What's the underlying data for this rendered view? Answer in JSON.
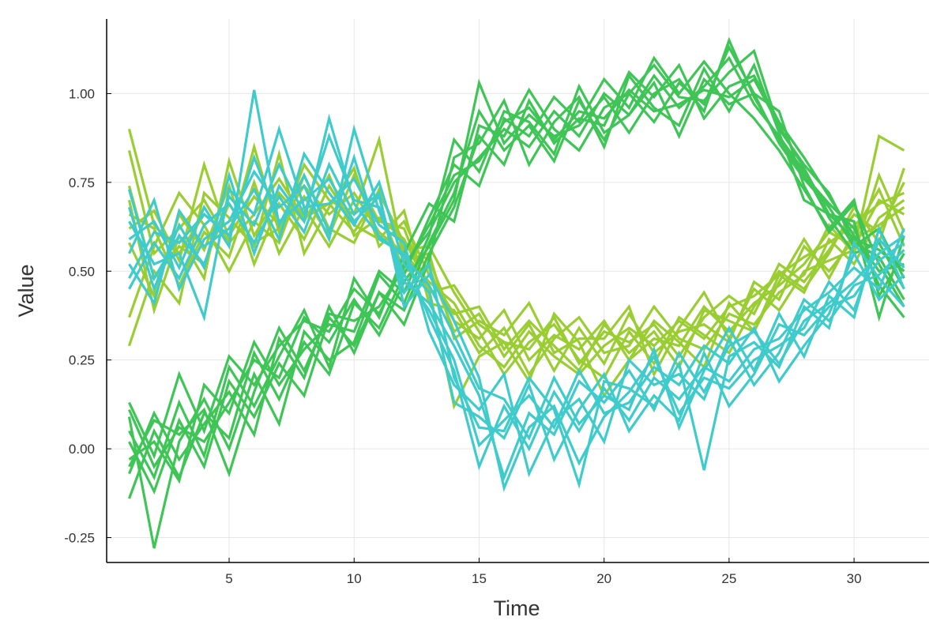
{
  "chart_data": {
    "type": "line",
    "title": "",
    "xlabel": "Time",
    "ylabel": "Value",
    "xlim": [
      0.1,
      33
    ],
    "ylim": [
      -0.32,
      1.21
    ],
    "x_ticks": [
      5,
      10,
      15,
      20,
      25,
      30
    ],
    "y_ticks": [
      -0.25,
      0.0,
      0.25,
      0.5,
      0.75,
      1.0
    ],
    "x_tick_labels": [
      "5",
      "10",
      "15",
      "20",
      "25",
      "30"
    ],
    "y_tick_labels": [
      "-0.25",
      "0.00",
      "0.25",
      "0.50",
      "0.75",
      "1.00"
    ],
    "grid": true,
    "legend": "none",
    "x": [
      1,
      2,
      3,
      4,
      5,
      6,
      7,
      8,
      9,
      10,
      11,
      12,
      13,
      14,
      15,
      16,
      17,
      18,
      19,
      20,
      21,
      22,
      23,
      24,
      25,
      26,
      27,
      28,
      29,
      30,
      31,
      32
    ],
    "series": [
      {
        "color": "#9acd32",
        "values": [
          0.9,
          0.63,
          0.55,
          0.66,
          0.6,
          0.71,
          0.63,
          0.74,
          0.66,
          0.72,
          0.61,
          0.55,
          0.47,
          0.41,
          0.29,
          0.23,
          0.33,
          0.26,
          0.21,
          0.29,
          0.34,
          0.29,
          0.36,
          0.31,
          0.4,
          0.43,
          0.49,
          0.54,
          0.58,
          0.63,
          0.69,
          0.72
        ]
      },
      {
        "color": "#9acd32",
        "values": [
          0.84,
          0.55,
          0.62,
          0.7,
          0.58,
          0.66,
          0.76,
          0.65,
          0.69,
          0.61,
          0.72,
          0.58,
          0.53,
          0.36,
          0.31,
          0.39,
          0.25,
          0.32,
          0.28,
          0.36,
          0.25,
          0.31,
          0.29,
          0.4,
          0.33,
          0.41,
          0.46,
          0.52,
          0.61,
          0.57,
          0.7,
          0.66
        ]
      },
      {
        "color": "#9acd32",
        "values": [
          0.74,
          0.48,
          0.57,
          0.52,
          0.69,
          0.58,
          0.62,
          0.71,
          0.6,
          0.77,
          0.64,
          0.62,
          0.44,
          0.46,
          0.35,
          0.3,
          0.28,
          0.37,
          0.24,
          0.33,
          0.3,
          0.35,
          0.26,
          0.37,
          0.43,
          0.38,
          0.52,
          0.47,
          0.56,
          0.66,
          0.61,
          0.75
        ]
      },
      {
        "color": "#9acd32",
        "values": [
          0.66,
          0.62,
          0.46,
          0.61,
          0.54,
          0.75,
          0.55,
          0.68,
          0.57,
          0.7,
          0.68,
          0.5,
          0.51,
          0.33,
          0.38,
          0.26,
          0.35,
          0.22,
          0.34,
          0.24,
          0.38,
          0.27,
          0.33,
          0.35,
          0.3,
          0.47,
          0.42,
          0.57,
          0.5,
          0.59,
          0.63,
          0.68
        ]
      },
      {
        "color": "#9acd32",
        "values": [
          0.58,
          0.43,
          0.66,
          0.56,
          0.74,
          0.52,
          0.69,
          0.59,
          0.74,
          0.63,
          0.59,
          0.67,
          0.41,
          0.39,
          0.27,
          0.34,
          0.21,
          0.31,
          0.37,
          0.27,
          0.29,
          0.4,
          0.31,
          0.28,
          0.38,
          0.35,
          0.44,
          0.49,
          0.63,
          0.55,
          0.77,
          0.61
        ]
      },
      {
        "color": "#9acd32",
        "values": [
          0.37,
          0.57,
          0.72,
          0.63,
          0.5,
          0.64,
          0.58,
          0.77,
          0.62,
          0.58,
          0.73,
          0.56,
          0.57,
          0.44,
          0.33,
          0.21,
          0.3,
          0.35,
          0.25,
          0.2,
          0.33,
          0.24,
          0.37,
          0.32,
          0.27,
          0.4,
          0.5,
          0.45,
          0.55,
          0.68,
          0.58,
          0.79
        ]
      },
      {
        "color": "#9acd32",
        "values": [
          0.29,
          0.5,
          0.41,
          0.72,
          0.65,
          0.57,
          0.83,
          0.55,
          0.68,
          0.79,
          0.57,
          0.64,
          0.49,
          0.38,
          0.4,
          0.28,
          0.36,
          0.29,
          0.22,
          0.35,
          0.27,
          0.33,
          0.23,
          0.39,
          0.36,
          0.33,
          0.47,
          0.59,
          0.48,
          0.61,
          0.73,
          0.57
        ]
      },
      {
        "color": "#9acd32",
        "values": [
          0.62,
          0.67,
          0.53,
          0.8,
          0.59,
          0.85,
          0.61,
          0.8,
          0.7,
          0.66,
          0.87,
          0.53,
          0.55,
          0.31,
          0.36,
          0.32,
          0.41,
          0.27,
          0.31,
          0.31,
          0.4,
          0.21,
          0.34,
          0.44,
          0.31,
          0.45,
          0.39,
          0.5,
          0.53,
          0.56,
          0.88,
          0.84
        ]
      },
      {
        "color": "#9acd32",
        "values": [
          0.7,
          0.39,
          0.6,
          0.48,
          0.81,
          0.6,
          0.72,
          0.64,
          0.77,
          0.6,
          0.65,
          0.59,
          0.45,
          0.12,
          0.26,
          0.3,
          0.19,
          0.38,
          0.3,
          0.15,
          0.25,
          0.36,
          0.3,
          0.23,
          0.41,
          0.33,
          0.49,
          0.44,
          0.59,
          0.52,
          0.65,
          0.7
        ]
      },
      {
        "color": "#3ec556",
        "values": [
          0.13,
          -0.02,
          0.21,
          0.05,
          0.26,
          0.18,
          0.29,
          0.36,
          0.33,
          0.45,
          0.38,
          0.52,
          0.61,
          0.75,
          0.82,
          0.9,
          0.85,
          0.95,
          0.88,
          1.0,
          0.94,
          1.05,
          0.96,
          1.02,
          1.1,
          0.97,
          0.88,
          0.78,
          0.65,
          0.55,
          0.58,
          0.45
        ]
      },
      {
        "color": "#3ec556",
        "values": [
          0.02,
          -0.12,
          0.08,
          -0.05,
          0.19,
          0.09,
          0.24,
          0.15,
          0.37,
          0.29,
          0.44,
          0.39,
          0.55,
          0.68,
          0.88,
          0.8,
          0.98,
          0.86,
          0.93,
          0.91,
          1.06,
          0.99,
          1.08,
          0.93,
          1.02,
          1.05,
          0.92,
          0.82,
          0.71,
          0.6,
          0.5,
          0.52
        ]
      },
      {
        "color": "#3ec556",
        "values": [
          -0.14,
          0.05,
          -0.08,
          0.1,
          0.03,
          0.27,
          0.14,
          0.3,
          0.21,
          0.41,
          0.34,
          0.49,
          0.65,
          0.8,
          0.74,
          0.93,
          0.88,
          0.99,
          0.92,
          1.04,
          0.96,
          1.1,
          1.0,
          1.09,
          1.0,
          0.93,
          0.84,
          0.73,
          0.62,
          0.7,
          0.43,
          0.55
        ]
      },
      {
        "color": "#3ec556",
        "values": [
          0.09,
          -0.28,
          0.02,
          0.14,
          0.0,
          0.21,
          0.07,
          0.33,
          0.25,
          0.3,
          0.49,
          0.41,
          0.58,
          0.72,
          0.95,
          0.84,
          0.91,
          0.81,
          0.98,
          0.87,
          1.0,
          0.92,
          1.03,
          0.97,
          1.13,
          1.0,
          0.86,
          0.76,
          0.68,
          0.57,
          0.62,
          0.48
        ]
      },
      {
        "color": "#3ec556",
        "values": [
          -0.07,
          0.1,
          -0.03,
          0.07,
          0.16,
          0.04,
          0.31,
          0.2,
          0.4,
          0.27,
          0.44,
          0.35,
          0.53,
          0.82,
          0.86,
          0.98,
          0.8,
          0.92,
          0.99,
          0.85,
          1.05,
          0.96,
          0.91,
          1.07,
          0.95,
          1.08,
          0.89,
          0.7,
          0.66,
          0.64,
          0.37,
          0.6
        ]
      },
      {
        "color": "#3ec556",
        "values": [
          0.05,
          -0.08,
          0.13,
          -0.02,
          0.23,
          0.12,
          0.26,
          0.39,
          0.23,
          0.48,
          0.37,
          0.55,
          0.69,
          0.64,
          0.91,
          0.88,
          1.01,
          0.9,
          0.84,
          0.96,
          1.0,
          1.08,
          0.99,
          0.98,
          1.06,
          1.12,
          0.9,
          0.8,
          0.72,
          0.58,
          0.54,
          0.42
        ]
      },
      {
        "color": "#3ec556",
        "values": [
          -0.03,
          0.02,
          -0.09,
          0.18,
          0.1,
          0.3,
          0.18,
          0.28,
          0.35,
          0.33,
          0.5,
          0.44,
          0.6,
          0.87,
          0.78,
          0.95,
          0.92,
          0.83,
          1.02,
          0.89,
          0.94,
          1.03,
          0.88,
          1.04,
          0.97,
          1.0,
          0.95,
          0.74,
          0.61,
          0.69,
          0.52,
          0.4
        ]
      },
      {
        "color": "#3ec556",
        "values": [
          0.11,
          -0.05,
          0.06,
          0.02,
          0.13,
          0.25,
          0.2,
          0.37,
          0.3,
          0.42,
          0.32,
          0.47,
          0.57,
          0.7,
          1.03,
          0.86,
          0.94,
          0.88,
          0.91,
          0.99,
          0.89,
          1.0,
          1.04,
          0.95,
          1.15,
          0.99,
          0.87,
          0.77,
          0.69,
          0.62,
          0.46,
          0.37
        ]
      },
      {
        "color": "#3ec556",
        "values": [
          -0.05,
          0.08,
          0.04,
          0.11,
          -0.07,
          0.16,
          0.34,
          0.22,
          0.38,
          0.36,
          0.4,
          0.51,
          0.63,
          0.77,
          0.81,
          0.92,
          0.96,
          0.87,
          0.95,
          0.93,
          1.01,
          0.95,
          0.97,
          1.01,
          0.99,
          1.04,
          0.91,
          0.79,
          0.66,
          0.59,
          0.56,
          0.5
        ]
      },
      {
        "color": "#3fcbcb",
        "values": [
          0.73,
          0.48,
          0.6,
          0.52,
          0.71,
          0.63,
          0.8,
          0.66,
          0.88,
          0.7,
          0.68,
          0.47,
          0.41,
          0.29,
          0.15,
          -0.08,
          0.1,
          0.04,
          0.19,
          0.13,
          0.22,
          0.11,
          0.27,
          0.16,
          0.29,
          0.33,
          0.24,
          0.36,
          0.41,
          0.47,
          0.55,
          0.6
        ]
      },
      {
        "color": "#3fcbcb",
        "values": [
          0.59,
          0.64,
          0.51,
          0.68,
          0.57,
          1.01,
          0.63,
          0.77,
          0.61,
          0.82,
          0.59,
          0.55,
          0.37,
          0.22,
          -0.05,
          0.12,
          0.0,
          0.16,
          0.05,
          0.17,
          0.08,
          0.2,
          0.14,
          0.23,
          0.19,
          0.28,
          0.31,
          0.39,
          0.44,
          0.51,
          0.45,
          0.62
        ]
      },
      {
        "color": "#3fcbcb",
        "values": [
          0.52,
          0.41,
          0.67,
          0.57,
          0.62,
          0.73,
          0.59,
          0.83,
          0.72,
          0.63,
          0.75,
          0.52,
          0.44,
          0.13,
          0.09,
          0.03,
          0.18,
          -0.03,
          0.11,
          0.21,
          0.05,
          0.15,
          0.08,
          0.27,
          0.12,
          0.21,
          0.35,
          0.32,
          0.4,
          0.43,
          0.53,
          0.58
        ]
      },
      {
        "color": "#3fcbcb",
        "values": [
          0.45,
          0.58,
          0.48,
          0.63,
          0.69,
          0.58,
          0.71,
          0.61,
          0.8,
          0.66,
          0.72,
          0.4,
          0.49,
          0.36,
          0.2,
          -0.11,
          0.06,
          0.12,
          -0.04,
          0.09,
          0.16,
          0.26,
          0.1,
          0.2,
          0.17,
          0.25,
          0.29,
          0.34,
          0.47,
          0.39,
          0.59,
          0.51
        ]
      },
      {
        "color": "#3fcbcb",
        "values": [
          0.64,
          0.52,
          0.55,
          0.37,
          0.73,
          0.66,
          0.9,
          0.68,
          0.69,
          0.76,
          0.63,
          0.58,
          0.33,
          0.18,
          0.11,
          0.21,
          -0.07,
          0.08,
          0.14,
          0.02,
          0.25,
          0.18,
          0.21,
          0.14,
          0.31,
          0.18,
          0.27,
          0.42,
          0.36,
          0.46,
          0.49,
          0.56
        ]
      },
      {
        "color": "#3fcbcb",
        "values": [
          0.55,
          0.7,
          0.45,
          0.59,
          0.64,
          0.78,
          0.68,
          0.74,
          0.59,
          0.9,
          0.67,
          0.49,
          0.39,
          0.25,
          0.01,
          0.08,
          0.15,
          0.06,
          0.22,
          0.1,
          0.13,
          0.23,
          0.18,
          0.29,
          0.24,
          0.34,
          0.19,
          0.29,
          0.38,
          0.55,
          0.42,
          0.49
        ]
      },
      {
        "color": "#3fcbcb",
        "values": [
          0.68,
          0.45,
          0.63,
          0.51,
          0.77,
          0.55,
          0.74,
          0.64,
          0.93,
          0.69,
          0.6,
          0.54,
          0.46,
          0.32,
          0.17,
          0.14,
          0.03,
          0.2,
          0.07,
          0.15,
          0.11,
          0.28,
          0.06,
          0.22,
          0.34,
          0.22,
          0.38,
          0.26,
          0.43,
          0.37,
          0.62,
          0.45
        ]
      },
      {
        "color": "#3fcbcb",
        "values": [
          0.48,
          0.61,
          0.58,
          0.66,
          0.6,
          0.82,
          0.64,
          0.7,
          0.76,
          0.64,
          0.71,
          0.44,
          0.52,
          0.2,
          0.06,
          0.05,
          0.2,
          0.11,
          -0.1,
          0.19,
          0.17,
          0.12,
          0.24,
          -0.06,
          0.26,
          0.3,
          0.23,
          0.4,
          0.34,
          0.58,
          0.48,
          0.4
        ]
      }
    ]
  }
}
